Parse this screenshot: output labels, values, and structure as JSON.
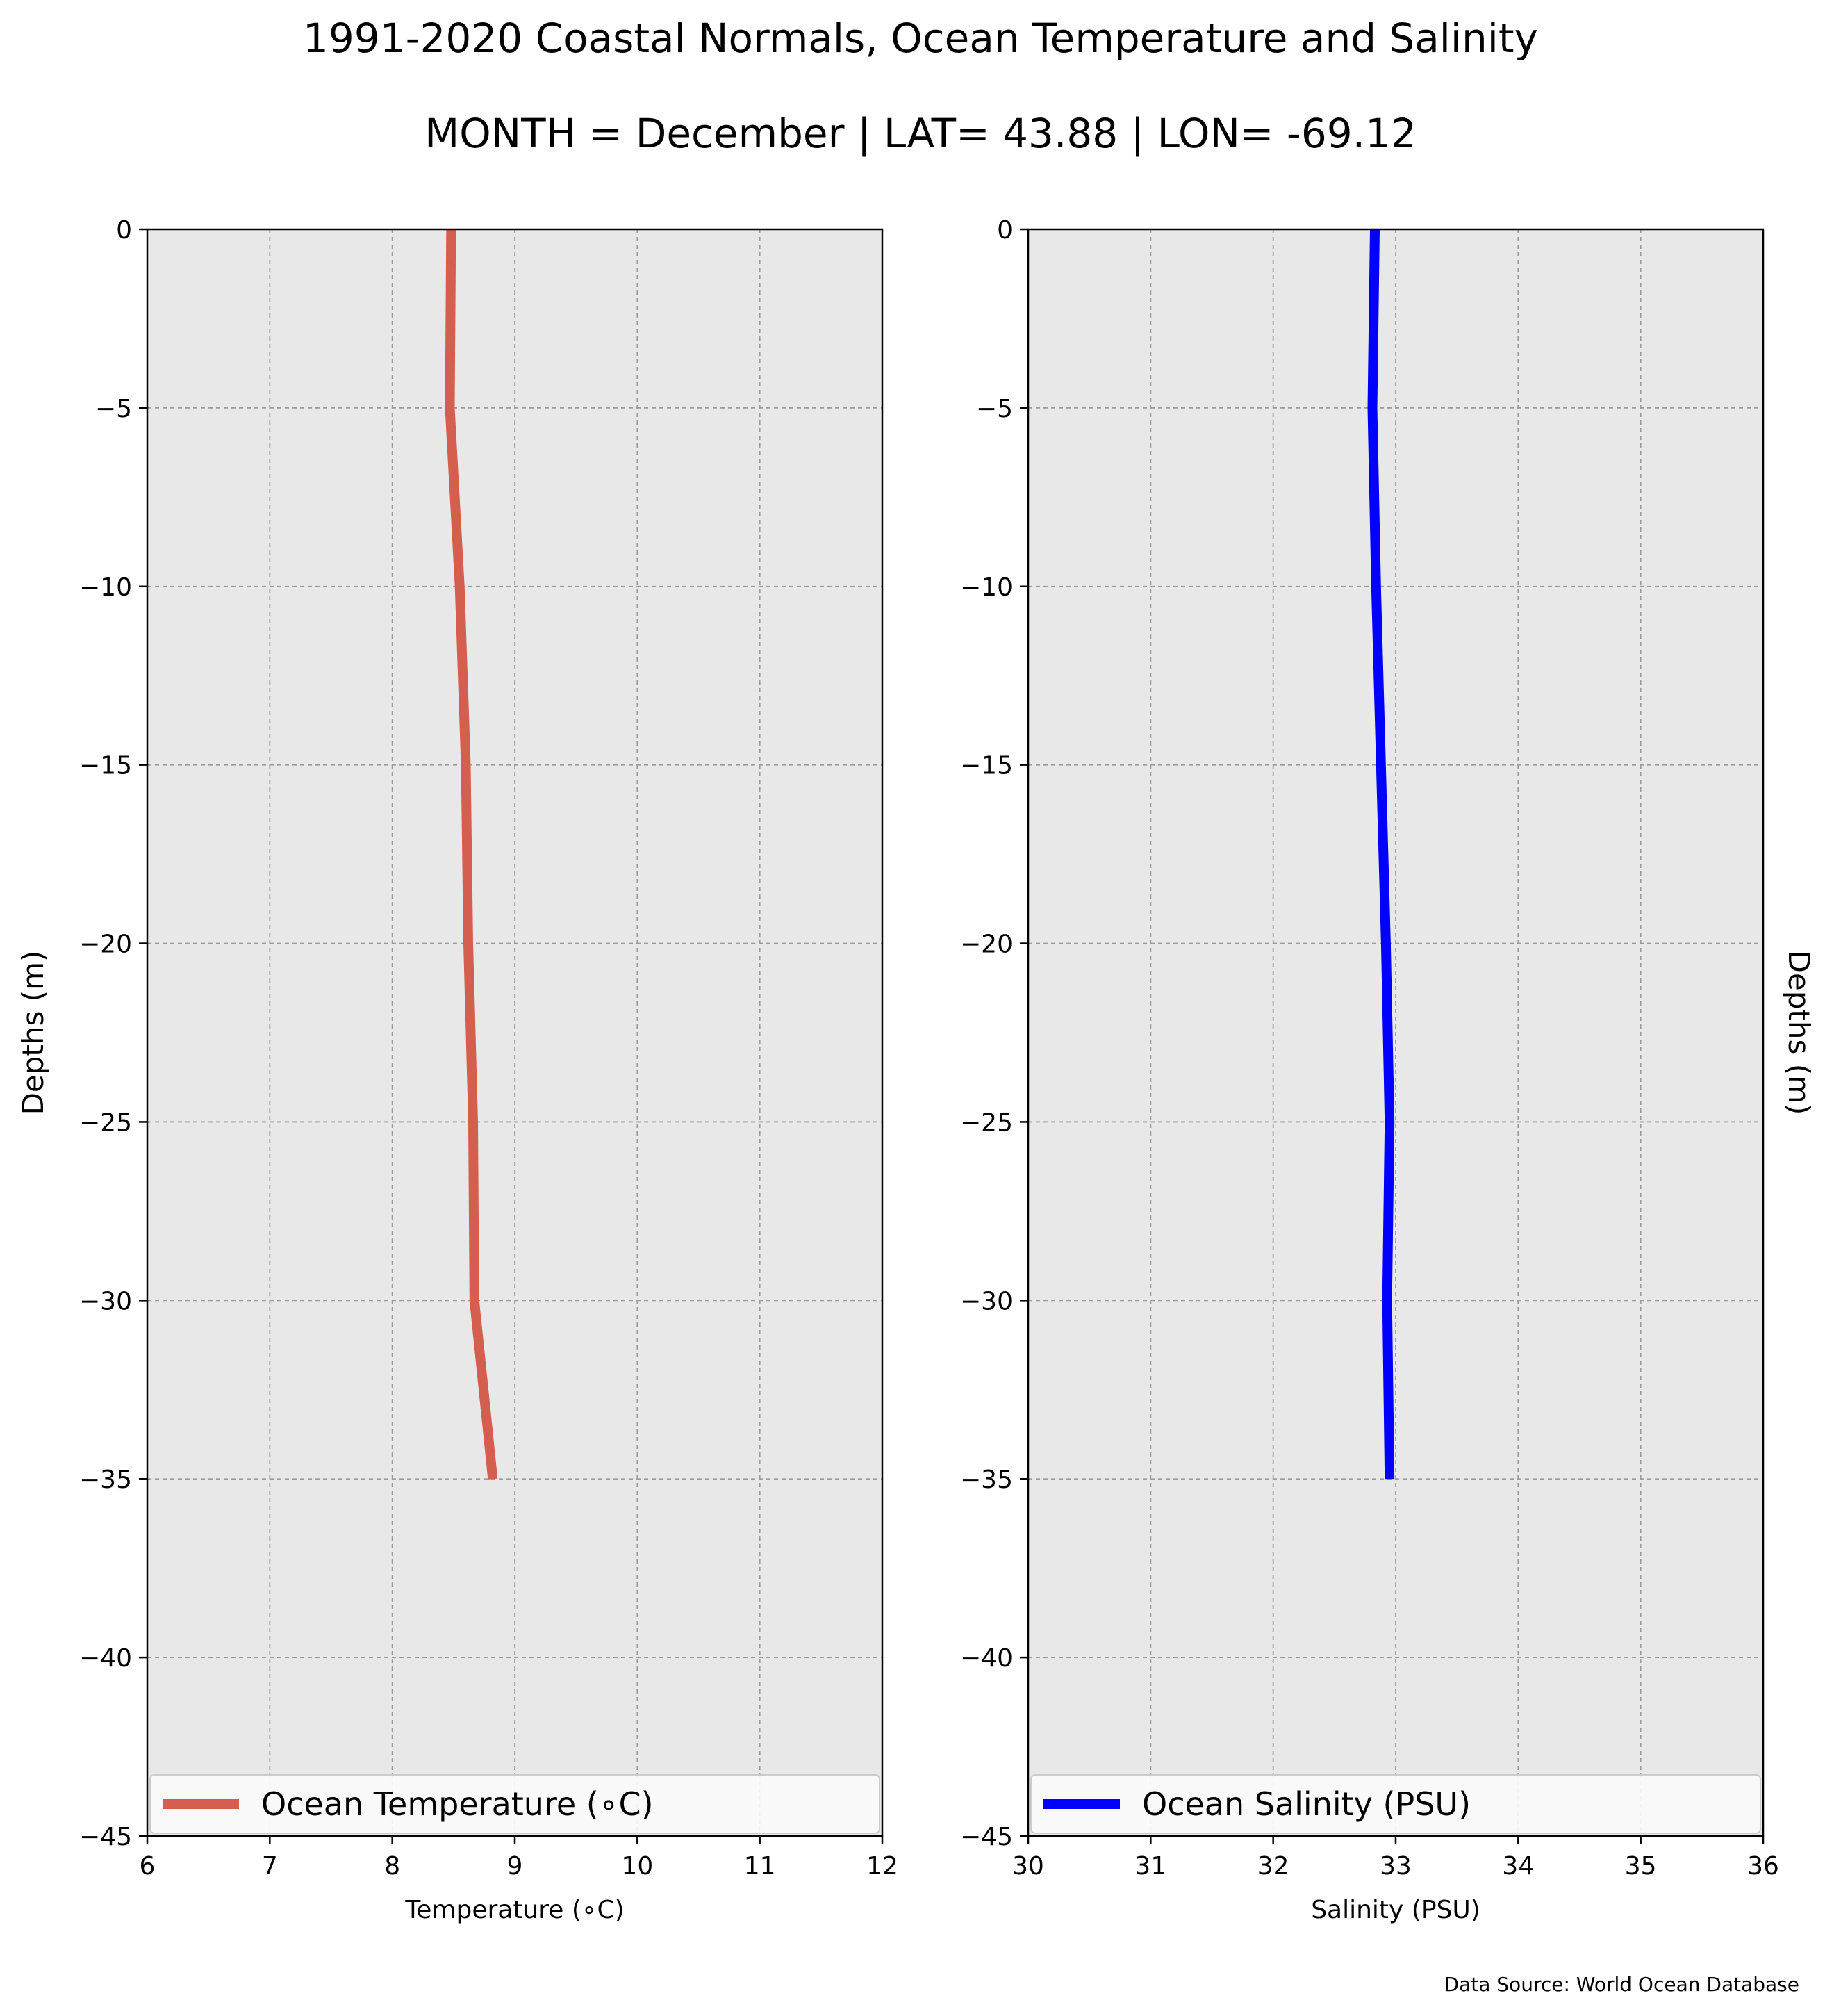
{
  "figure": {
    "title": "1991-2020 Coastal Normals, Ocean Temperature and Salinity",
    "subtitle": "MONTH = December | LAT= 43.88 | LON= -69.12",
    "source_note": "Data Source: World Ocean Database"
  },
  "chart_data": [
    {
      "type": "line",
      "xlabel": "Temperature (∘C)",
      "ylabel": "Depths (m)",
      "ylabel_side": "left",
      "xlim": [
        6,
        12
      ],
      "ylim": [
        -45,
        0
      ],
      "xticks": [
        6,
        7,
        8,
        9,
        10,
        11,
        12
      ],
      "yticks": [
        0,
        -5,
        -10,
        -15,
        -20,
        -25,
        -30,
        -35,
        -40,
        -45
      ],
      "grid": true,
      "legend_position": "bottom",
      "series": [
        {
          "name": "Ocean Temperature (∘C)",
          "color": "#d45f4e",
          "x": [
            8.48,
            8.47,
            8.55,
            8.6,
            8.62,
            8.66,
            8.67,
            8.82
          ],
          "y": [
            0,
            -5,
            -10,
            -15,
            -20,
            -25,
            -30,
            -35
          ]
        }
      ]
    },
    {
      "type": "line",
      "xlabel": "Salinity (PSU)",
      "ylabel": "Depths (m)",
      "ylabel_side": "right",
      "xlim": [
        30,
        36
      ],
      "ylim": [
        -45,
        0
      ],
      "xticks": [
        30,
        31,
        32,
        33,
        34,
        35,
        36
      ],
      "yticks": [
        0,
        -5,
        -10,
        -15,
        -20,
        -25,
        -30,
        -35,
        -40,
        -45
      ],
      "grid": true,
      "legend_position": "bottom",
      "series": [
        {
          "name": "Ocean Salinity (PSU)",
          "color": "#0000ff",
          "x": [
            32.83,
            32.81,
            32.84,
            32.88,
            32.92,
            32.95,
            32.93,
            32.95
          ],
          "y": [
            0,
            -5,
            -10,
            -15,
            -20,
            -25,
            -30,
            -35
          ]
        }
      ]
    }
  ]
}
